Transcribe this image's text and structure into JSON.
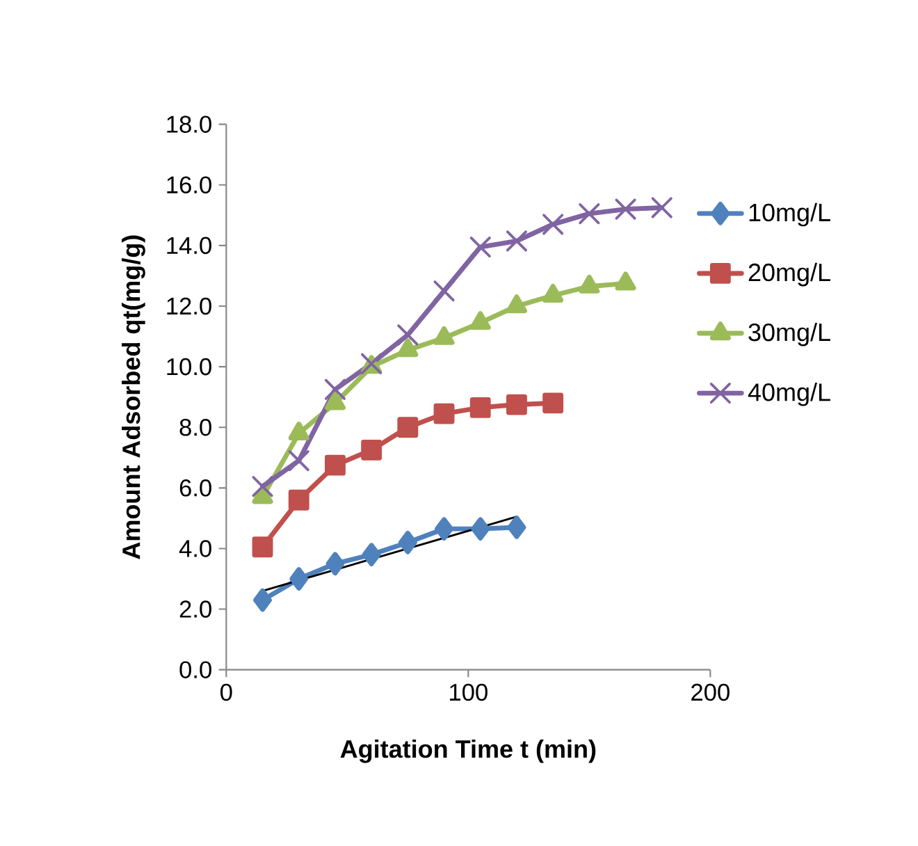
{
  "chart_data": {
    "type": "line",
    "xlabel": "Agitation Time t (min)",
    "ylabel": "Amount Adsorbed qt(mg/g)",
    "xlim": [
      0,
      200
    ],
    "xticks": [
      0,
      100,
      200
    ],
    "ylim": [
      0,
      18
    ],
    "yticks": [
      {
        "value": 0,
        "label": "0.0"
      },
      {
        "value": 2,
        "label": "2.0"
      },
      {
        "value": 4,
        "label": "4.0"
      },
      {
        "value": 6,
        "label": "6.0"
      },
      {
        "value": 8,
        "label": "8.0"
      },
      {
        "value": 10,
        "label": "10.0"
      },
      {
        "value": 12,
        "label": "12.0"
      },
      {
        "value": 14,
        "label": "14.0"
      },
      {
        "value": 16,
        "label": "16.0"
      },
      {
        "value": 18,
        "label": "18.0"
      }
    ],
    "grid": false,
    "legend": "right",
    "series": [
      {
        "name": "10mg/L",
        "color": "#4f81bd",
        "marker": "diamond",
        "x": [
          15,
          30,
          45,
          60,
          75,
          90,
          105,
          120
        ],
        "values": [
          2.3,
          3.0,
          3.5,
          3.8,
          4.2,
          4.65,
          4.65,
          4.7
        ]
      },
      {
        "name": "20mg/L",
        "color": "#c0504d",
        "marker": "square",
        "x": [
          15,
          30,
          45,
          60,
          75,
          90,
          105,
          120,
          135
        ],
        "values": [
          4.05,
          5.6,
          6.75,
          7.25,
          8.0,
          8.45,
          8.65,
          8.75,
          8.8
        ]
      },
      {
        "name": "30mg/L",
        "color": "#9bbb59",
        "marker": "triangle",
        "x": [
          15,
          30,
          45,
          60,
          75,
          90,
          105,
          120,
          135,
          150,
          165
        ],
        "values": [
          5.7,
          7.8,
          8.8,
          10.0,
          10.55,
          10.95,
          11.45,
          12.0,
          12.35,
          12.65,
          12.75
        ]
      },
      {
        "name": "40mg/L",
        "color": "#8064a2",
        "marker": "cross",
        "x": [
          15,
          30,
          45,
          60,
          75,
          90,
          105,
          120,
          135,
          150,
          165,
          180
        ],
        "values": [
          6.05,
          6.9,
          9.25,
          10.1,
          11.05,
          12.5,
          13.95,
          14.15,
          14.7,
          15.05,
          15.2,
          15.25
        ]
      },
      {
        "color": "#000000",
        "marker": "none",
        "x": [
          15,
          120
        ],
        "values": [
          2.6,
          5.05
        ]
      }
    ]
  }
}
